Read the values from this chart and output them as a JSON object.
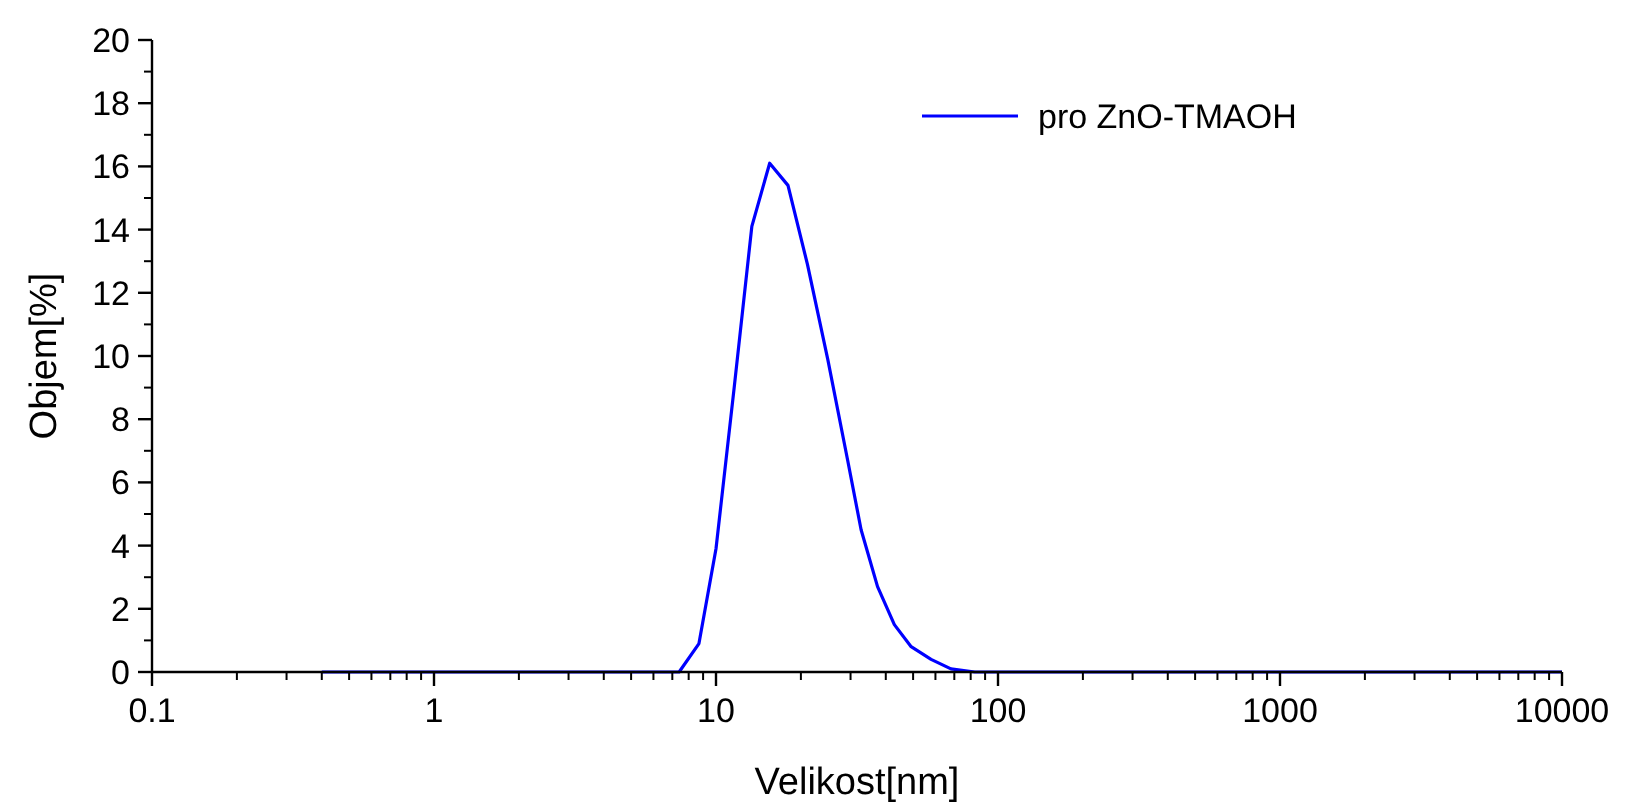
{
  "chart_data": {
    "type": "line",
    "xlabel": "Velikost[nm]",
    "ylabel": "Objem[%]",
    "log": "x",
    "legend": "top right",
    "line_style": "solid",
    "grid": false,
    "xlim": [
      0.1,
      10000
    ],
    "xticks": [
      0.1,
      1,
      10,
      100,
      1000,
      10000
    ],
    "ylim": [
      0,
      20
    ],
    "yticks": [
      0,
      2,
      4,
      6,
      8,
      10,
      12,
      14,
      16,
      18,
      20
    ],
    "series": [
      {
        "name": "pro ZnO-TMAOH",
        "color": "#0000ff",
        "x": [
          0.4,
          7.4,
          8.7,
          10,
          11.6,
          13.4,
          15.5,
          18,
          21.1,
          24.9,
          29.3,
          32.7,
          37.4,
          42.9,
          49.2,
          57.9,
          68.1,
          82.7,
          10000
        ],
        "values": [
          0,
          0,
          0.9,
          3.9,
          9,
          14.1,
          16.1,
          15.4,
          12.9,
          9.9,
          6.7,
          4.5,
          2.7,
          1.5,
          0.8,
          0.4,
          0.1,
          0,
          0
        ]
      }
    ]
  }
}
